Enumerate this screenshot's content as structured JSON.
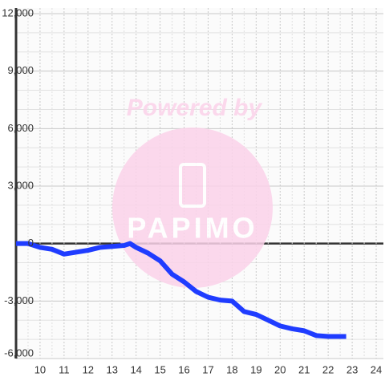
{
  "chart_data": {
    "type": "line",
    "annotations": [
      "Powered by",
      "PAPIMO"
    ],
    "x": [
      9,
      9.5,
      10,
      10.5,
      11,
      11.5,
      12,
      12.5,
      13,
      13.5,
      13.75,
      14,
      14.5,
      15,
      15.5,
      16,
      16.5,
      17,
      17.5,
      18,
      18.5,
      19,
      19.5,
      20,
      20.5,
      21,
      21.5,
      22,
      22.5,
      22.75
    ],
    "series": [
      {
        "color": "#1f3cff",
        "values": [
          0,
          0,
          -200,
          -300,
          -550,
          -450,
          -350,
          -200,
          -150,
          -100,
          0,
          -200,
          -500,
          -900,
          -1600,
          -2000,
          -2500,
          -2800,
          -2950,
          -3000,
          -3550,
          -3700,
          -4000,
          -4300,
          -4450,
          -4550,
          -4800,
          -4850,
          -4850,
          -4850
        ]
      }
    ],
    "xlim": [
      9,
      24.3
    ],
    "xticks": [
      10,
      11,
      12,
      13,
      14,
      15,
      16,
      17,
      18,
      19,
      20,
      21,
      22,
      23,
      24
    ],
    "ylim": [
      -6000,
      12000
    ],
    "yticks": [
      {
        "value": -6000,
        "label": "-6,000"
      },
      {
        "value": -3000,
        "label": "-3,000"
      },
      0,
      {
        "value": 3000,
        "label": "3,000"
      },
      {
        "value": 6000,
        "label": "6,000"
      },
      {
        "value": 9000,
        "label": "9,000"
      },
      {
        "value": 12000,
        "label": "12,000"
      }
    ],
    "grid": true
  }
}
